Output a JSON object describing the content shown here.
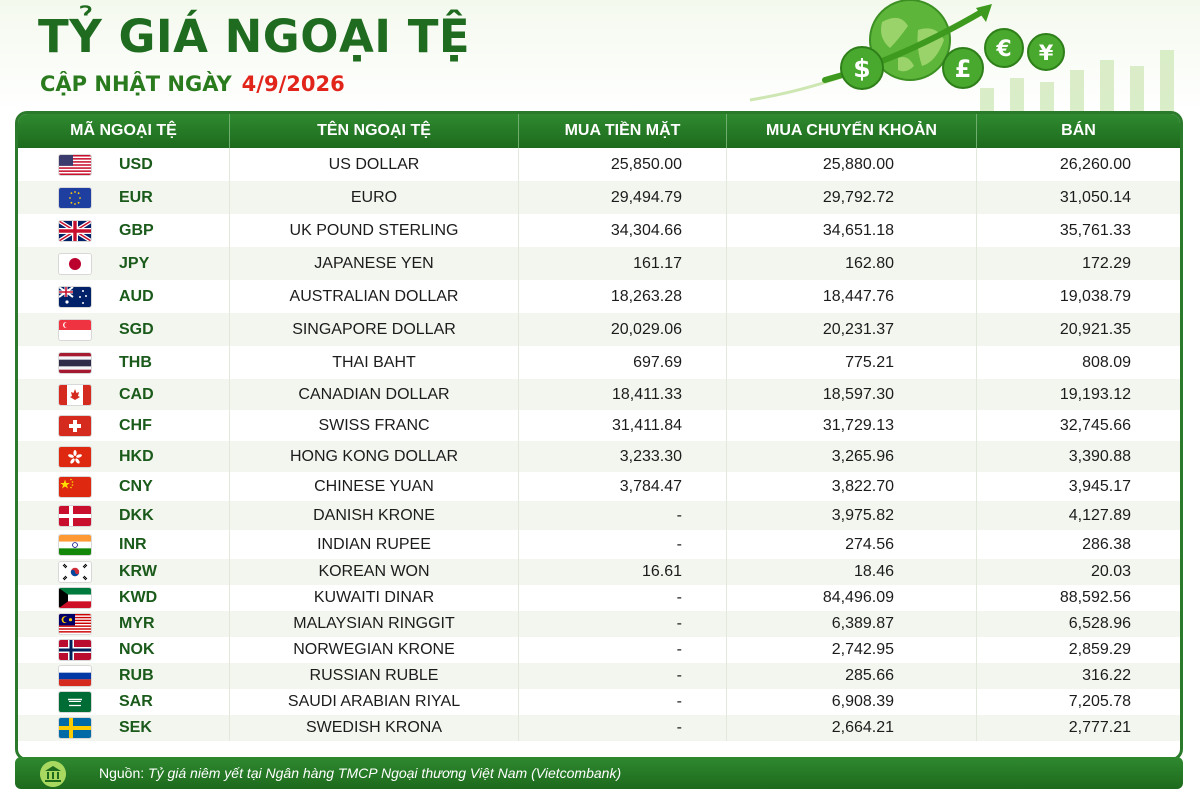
{
  "header": {
    "title": "TỶ GIÁ NGOẠI TỆ",
    "update_label": "CẬP NHẬT NGÀY",
    "update_date": "4/9/2026"
  },
  "decoration": {
    "symbols": [
      "$",
      "£",
      "€",
      "¥"
    ]
  },
  "colors": {
    "primary_green": "#1f6b1f",
    "table_header": "#2f8a2f",
    "date_red": "#e1251b"
  },
  "table": {
    "columns": [
      "MÃ NGOẠI TỆ",
      "TÊN NGOẠI TỆ",
      "MUA TIỀN MẶT",
      "MUA CHUYỂN KHOẢN",
      "BÁN"
    ],
    "rows": [
      {
        "flag": "us-flag-icon",
        "code": "USD",
        "name": "US DOLLAR",
        "cash_buy": "25,850.00",
        "transfer_buy": "25,880.00",
        "sell": "26,260.00"
      },
      {
        "flag": "eu-flag-icon",
        "code": "EUR",
        "name": "EURO",
        "cash_buy": "29,494.79",
        "transfer_buy": "29,792.72",
        "sell": "31,050.14"
      },
      {
        "flag": "uk-flag-icon",
        "code": "GBP",
        "name": "UK POUND STERLING",
        "cash_buy": "34,304.66",
        "transfer_buy": "34,651.18",
        "sell": "35,761.33"
      },
      {
        "flag": "japan-flag-icon",
        "code": "JPY",
        "name": "JAPANESE YEN",
        "cash_buy": "161.17",
        "transfer_buy": "162.80",
        "sell": "172.29"
      },
      {
        "flag": "australia-flag-icon",
        "code": "AUD",
        "name": "AUSTRALIAN DOLLAR",
        "cash_buy": "18,263.28",
        "transfer_buy": "18,447.76",
        "sell": "19,038.79"
      },
      {
        "flag": "singapore-flag-icon",
        "code": "SGD",
        "name": "SINGAPORE DOLLAR",
        "cash_buy": "20,029.06",
        "transfer_buy": "20,231.37",
        "sell": "20,921.35"
      },
      {
        "flag": "thailand-flag-icon",
        "code": "THB",
        "name": "THAI BAHT",
        "cash_buy": "697.69",
        "transfer_buy": "775.21",
        "sell": "808.09"
      },
      {
        "flag": "canada-flag-icon",
        "code": "CAD",
        "name": "CANADIAN DOLLAR",
        "cash_buy": "18,411.33",
        "transfer_buy": "18,597.30",
        "sell": "19,193.12"
      },
      {
        "flag": "switzerland-flag-icon",
        "code": "CHF",
        "name": "SWISS FRANC",
        "cash_buy": "31,411.84",
        "transfer_buy": "31,729.13",
        "sell": "32,745.66"
      },
      {
        "flag": "hongkong-flag-icon",
        "code": "HKD",
        "name": "HONG KONG DOLLAR",
        "cash_buy": "3,233.30",
        "transfer_buy": "3,265.96",
        "sell": "3,390.88"
      },
      {
        "flag": "china-flag-icon",
        "code": "CNY",
        "name": "CHINESE YUAN",
        "cash_buy": "3,784.47",
        "transfer_buy": "3,822.70",
        "sell": "3,945.17"
      },
      {
        "flag": "denmark-flag-icon",
        "code": "DKK",
        "name": "DANISH KRONE",
        "cash_buy": "-",
        "transfer_buy": "3,975.82",
        "sell": "4,127.89"
      },
      {
        "flag": "india-flag-icon",
        "code": "INR",
        "name": "INDIAN RUPEE",
        "cash_buy": "-",
        "transfer_buy": "274.56",
        "sell": "286.38"
      },
      {
        "flag": "korea-flag-icon",
        "code": "KRW",
        "name": "KOREAN WON",
        "cash_buy": "16.61",
        "transfer_buy": "18.46",
        "sell": "20.03"
      },
      {
        "flag": "kuwait-flag-icon",
        "code": "KWD",
        "name": "KUWAITI DINAR",
        "cash_buy": "-",
        "transfer_buy": "84,496.09",
        "sell": "88,592.56"
      },
      {
        "flag": "malaysia-flag-icon",
        "code": "MYR",
        "name": "MALAYSIAN RINGGIT",
        "cash_buy": "-",
        "transfer_buy": "6,389.87",
        "sell": "6,528.96"
      },
      {
        "flag": "norway-flag-icon",
        "code": "NOK",
        "name": "NORWEGIAN KRONE",
        "cash_buy": "-",
        "transfer_buy": "2,742.95",
        "sell": "2,859.29"
      },
      {
        "flag": "russia-flag-icon",
        "code": "RUB",
        "name": "RUSSIAN RUBLE",
        "cash_buy": "-",
        "transfer_buy": "285.66",
        "sell": "316.22"
      },
      {
        "flag": "saudi-flag-icon",
        "code": "SAR",
        "name": "SAUDI ARABIAN RIYAL",
        "cash_buy": "-",
        "transfer_buy": "6,908.39",
        "sell": "7,205.78"
      },
      {
        "flag": "sweden-flag-icon",
        "code": "SEK",
        "name": "SWEDISH KRONA",
        "cash_buy": "-",
        "transfer_buy": "2,664.21",
        "sell": "2,777.21"
      }
    ]
  },
  "footer": {
    "icon": "bank-icon",
    "label": "Nguồn:",
    "text": "Tỷ giá niêm yết tại Ngân hàng TMCP Ngoại thương Việt Nam (Vietcombank)"
  }
}
